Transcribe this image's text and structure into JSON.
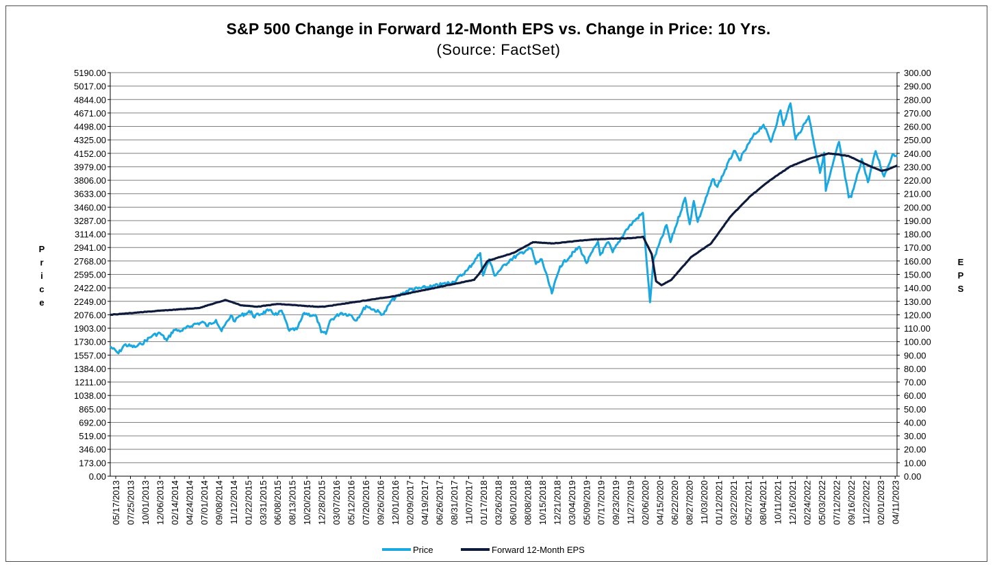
{
  "title": "S&P 500 Change in Forward 12-Month EPS vs. Change in Price: 10 Yrs.",
  "subtitle": "(Source: FactSet)",
  "colors": {
    "price": "#1ba8e0",
    "eps": "#0e1b3d",
    "grid": "#7f7f7f",
    "axis": "#000000"
  },
  "chart_data": {
    "type": "line",
    "title": "S&P 500 Change in Forward 12-Month EPS vs. Change in Price: 10 Yrs.",
    "subtitle": "(Source: FactSet)",
    "ylabel_left": "Price",
    "ylabel_right": "EPS",
    "grid": true,
    "legend_position": "bottom",
    "y_left": {
      "min": 0,
      "max": 5190,
      "ticks": [
        "0.00",
        "173.00",
        "346.00",
        "519.00",
        "692.00",
        "865.00",
        "1038.00",
        "1211.00",
        "1384.00",
        "1557.00",
        "1730.00",
        "1903.00",
        "2076.00",
        "2249.00",
        "2422.00",
        "2595.00",
        "2768.00",
        "2941.00",
        "3114.00",
        "3287.00",
        "3460.00",
        "3633.00",
        "3806.00",
        "3979.00",
        "4152.00",
        "4325.00",
        "4498.00",
        "4671.00",
        "4844.00",
        "5017.00",
        "5190.00"
      ]
    },
    "y_right": {
      "min": 0,
      "max": 300,
      "ticks": [
        "0.00",
        "10.00",
        "20.00",
        "30.00",
        "40.00",
        "50.00",
        "60.00",
        "70.00",
        "80.00",
        "90.00",
        "100.00",
        "110.00",
        "120.00",
        "130.00",
        "140.00",
        "150.00",
        "160.00",
        "170.00",
        "180.00",
        "190.00",
        "200.00",
        "210.00",
        "220.00",
        "230.00",
        "240.00",
        "250.00",
        "260.00",
        "270.00",
        "280.00",
        "290.00",
        "300.00"
      ]
    },
    "x_ticks": [
      "05/17/2013",
      "07/25/2013",
      "10/01/2013",
      "12/06/2013",
      "02/14/2014",
      "04/24/2014",
      "07/01/2014",
      "09/08/2014",
      "11/12/2014",
      "01/22/2015",
      "03/31/2015",
      "06/08/2015",
      "08/13/2015",
      "10/20/2015",
      "12/28/2015",
      "03/07/2016",
      "05/12/2016",
      "07/20/2016",
      "09/26/2016",
      "12/01/2016",
      "02/09/2017",
      "04/19/2017",
      "06/26/2017",
      "08/31/2017",
      "11/07/2017",
      "01/17/2018",
      "03/26/2018",
      "06/01/2018",
      "08/08/2018",
      "10/15/2018",
      "12/21/2018",
      "03/04/2019",
      "05/09/2019",
      "07/17/2019",
      "09/23/2019",
      "11/27/2019",
      "02/06/2020",
      "04/15/2020",
      "06/22/2020",
      "08/27/2020",
      "11/03/2020",
      "01/12/2021",
      "03/22/2021",
      "05/27/2021",
      "08/04/2021",
      "10/11/2021",
      "12/16/2021",
      "02/24/2022",
      "05/03/2022",
      "07/12/2022",
      "09/16/2022",
      "11/22/2022",
      "02/01/2023",
      "04/11/2023"
    ],
    "x_range": [
      "2013-05-17",
      "2023-05-12"
    ],
    "series": [
      {
        "name": "Price",
        "axis": "left",
        "x": [
          "2013-05-17",
          "2013-06-24",
          "2013-07-22",
          "2013-09-09",
          "2013-10-08",
          "2013-11-29",
          "2014-01-03",
          "2014-02-03",
          "2014-03-07",
          "2014-04-11",
          "2014-06-06",
          "2014-07-24",
          "2014-08-07",
          "2014-09-19",
          "2014-10-15",
          "2014-11-28",
          "2014-12-16",
          "2015-01-05",
          "2015-03-02",
          "2015-03-11",
          "2015-05-21",
          "2015-06-29",
          "2015-07-20",
          "2015-08-25",
          "2015-09-29",
          "2015-11-03",
          "2015-12-29",
          "2016-01-20",
          "2016-02-11",
          "2016-03-01",
          "2016-04-20",
          "2016-06-08",
          "2016-06-27",
          "2016-08-15",
          "2016-11-04",
          "2016-12-13",
          "2017-03-01",
          "2017-06-19",
          "2017-09-25",
          "2017-11-28",
          "2018-01-26",
          "2018-02-08",
          "2018-03-09",
          "2018-04-02",
          "2018-06-12",
          "2018-08-29",
          "2018-09-20",
          "2018-10-11",
          "2018-11-07",
          "2018-12-24",
          "2019-01-31",
          "2019-04-30",
          "2019-06-03",
          "2019-07-26",
          "2019-08-05",
          "2019-09-12",
          "2019-10-02",
          "2019-11-29",
          "2020-01-02",
          "2020-02-19",
          "2020-03-02",
          "2020-03-23",
          "2020-04-09",
          "2020-06-08",
          "2020-06-26",
          "2020-09-02",
          "2020-09-23",
          "2020-10-12",
          "2020-10-30",
          "2021-01-08",
          "2021-01-29",
          "2021-04-16",
          "2021-05-12",
          "2021-07-13",
          "2021-08-31",
          "2021-10-04",
          "2021-11-18",
          "2021-12-01",
          "2022-01-03",
          "2022-01-27",
          "2022-03-29",
          "2022-05-20",
          "2022-06-08",
          "2022-06-16",
          "2022-08-16",
          "2022-09-30",
          "2022-10-12",
          "2022-11-30",
          "2022-12-28",
          "2023-02-02",
          "2023-03-13",
          "2023-04-21",
          "2023-05-12"
        ],
        "values": [
          1667,
          1580,
          1690,
          1660,
          1700,
          1810,
          1840,
          1745,
          1880,
          1870,
          1950,
          1980,
          1930,
          2010,
          1865,
          2070,
          1990,
          2060,
          2120,
          2050,
          2130,
          2075,
          2130,
          1870,
          1890,
          2100,
          2050,
          1850,
          1830,
          2000,
          2100,
          2070,
          2000,
          2190,
          2080,
          2270,
          2395,
          2440,
          2500,
          2650,
          2870,
          2580,
          2790,
          2580,
          2780,
          2910,
          2930,
          2730,
          2790,
          2350,
          2700,
          2950,
          2740,
          3020,
          2845,
          3010,
          2880,
          3150,
          3260,
          3386,
          2950,
          2237,
          2790,
          3230,
          3010,
          3580,
          3240,
          3540,
          3270,
          3820,
          3720,
          4185,
          4060,
          4370,
          4520,
          4300,
          4705,
          4510,
          4795,
          4330,
          4630,
          3900,
          4160,
          3670,
          4300,
          3585,
          3590,
          4080,
          3780,
          4180,
          3855,
          4140,
          4125
        ]
      },
      {
        "name": "Forward 12-Month EPS",
        "axis": "right",
        "x": [
          "2013-05-17",
          "2014-01-02",
          "2014-07-01",
          "2014-11-03",
          "2015-01-15",
          "2015-03-31",
          "2015-07-01",
          "2015-12-31",
          "2016-02-01",
          "2016-12-30",
          "2017-06-30",
          "2017-12-29",
          "2018-01-19",
          "2018-03-01",
          "2018-06-29",
          "2018-09-28",
          "2018-12-31",
          "2019-06-28",
          "2019-12-31",
          "2020-02-20",
          "2020-03-31",
          "2020-04-20",
          "2020-05-15",
          "2020-06-30",
          "2020-09-30",
          "2020-12-31",
          "2021-03-31",
          "2021-06-30",
          "2021-09-30",
          "2021-12-31",
          "2022-03-31",
          "2022-06-30",
          "2022-09-30",
          "2022-12-30",
          "2023-02-28",
          "2023-03-31",
          "2023-05-12"
        ],
        "values": [
          120,
          123,
          125,
          131,
          127,
          126,
          128,
          126,
          126,
          134,
          140,
          146,
          150,
          160,
          166,
          174,
          173,
          176,
          177,
          178,
          165,
          145,
          142,
          146,
          163,
          173,
          193,
          208,
          220,
          230,
          236,
          240,
          238,
          231,
          227,
          228,
          231
        ]
      }
    ]
  }
}
